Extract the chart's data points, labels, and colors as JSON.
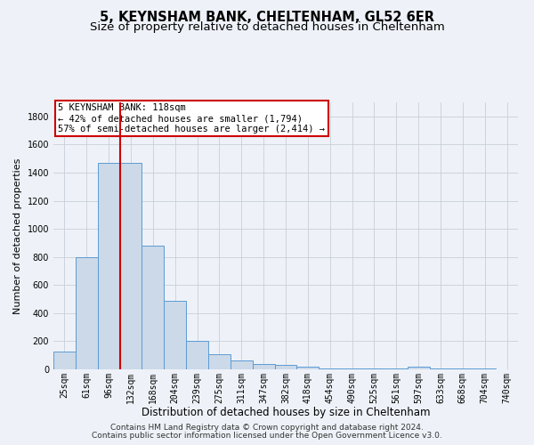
{
  "title": "5, KEYNSHAM BANK, CHELTENHAM, GL52 6ER",
  "subtitle": "Size of property relative to detached houses in Cheltenham",
  "xlabel": "Distribution of detached houses by size in Cheltenham",
  "ylabel": "Number of detached properties",
  "footer_line1": "Contains HM Land Registry data © Crown copyright and database right 2024.",
  "footer_line2": "Contains public sector information licensed under the Open Government Licence v3.0.",
  "bin_labels": [
    "25sqm",
    "61sqm",
    "96sqm",
    "132sqm",
    "168sqm",
    "204sqm",
    "239sqm",
    "275sqm",
    "311sqm",
    "347sqm",
    "382sqm",
    "418sqm",
    "454sqm",
    "490sqm",
    "525sqm",
    "561sqm",
    "597sqm",
    "633sqm",
    "668sqm",
    "704sqm",
    "740sqm"
  ],
  "bar_values": [
    125,
    800,
    1470,
    1470,
    880,
    490,
    205,
    105,
    65,
    40,
    32,
    20,
    5,
    5,
    5,
    5,
    20,
    5,
    5,
    5,
    0
  ],
  "bar_color": "#ccd9e8",
  "bar_edgecolor": "#5b9bd5",
  "vline_x": 2.5,
  "vline_color": "#cc0000",
  "annotation_text": "5 KEYNSHAM BANK: 118sqm\n← 42% of detached houses are smaller (1,794)\n57% of semi-detached houses are larger (2,414) →",
  "ylim": [
    0,
    1900
  ],
  "yticks": [
    0,
    200,
    400,
    600,
    800,
    1000,
    1200,
    1400,
    1600,
    1800
  ],
  "background_color": "#eef2f8",
  "grid_color": "#c8cfd8",
  "title_fontsize": 10.5,
  "subtitle_fontsize": 9.5,
  "xlabel_fontsize": 8.5,
  "ylabel_fontsize": 8,
  "tick_fontsize": 7,
  "footer_fontsize": 6.5,
  "annotation_fontsize": 7.5
}
